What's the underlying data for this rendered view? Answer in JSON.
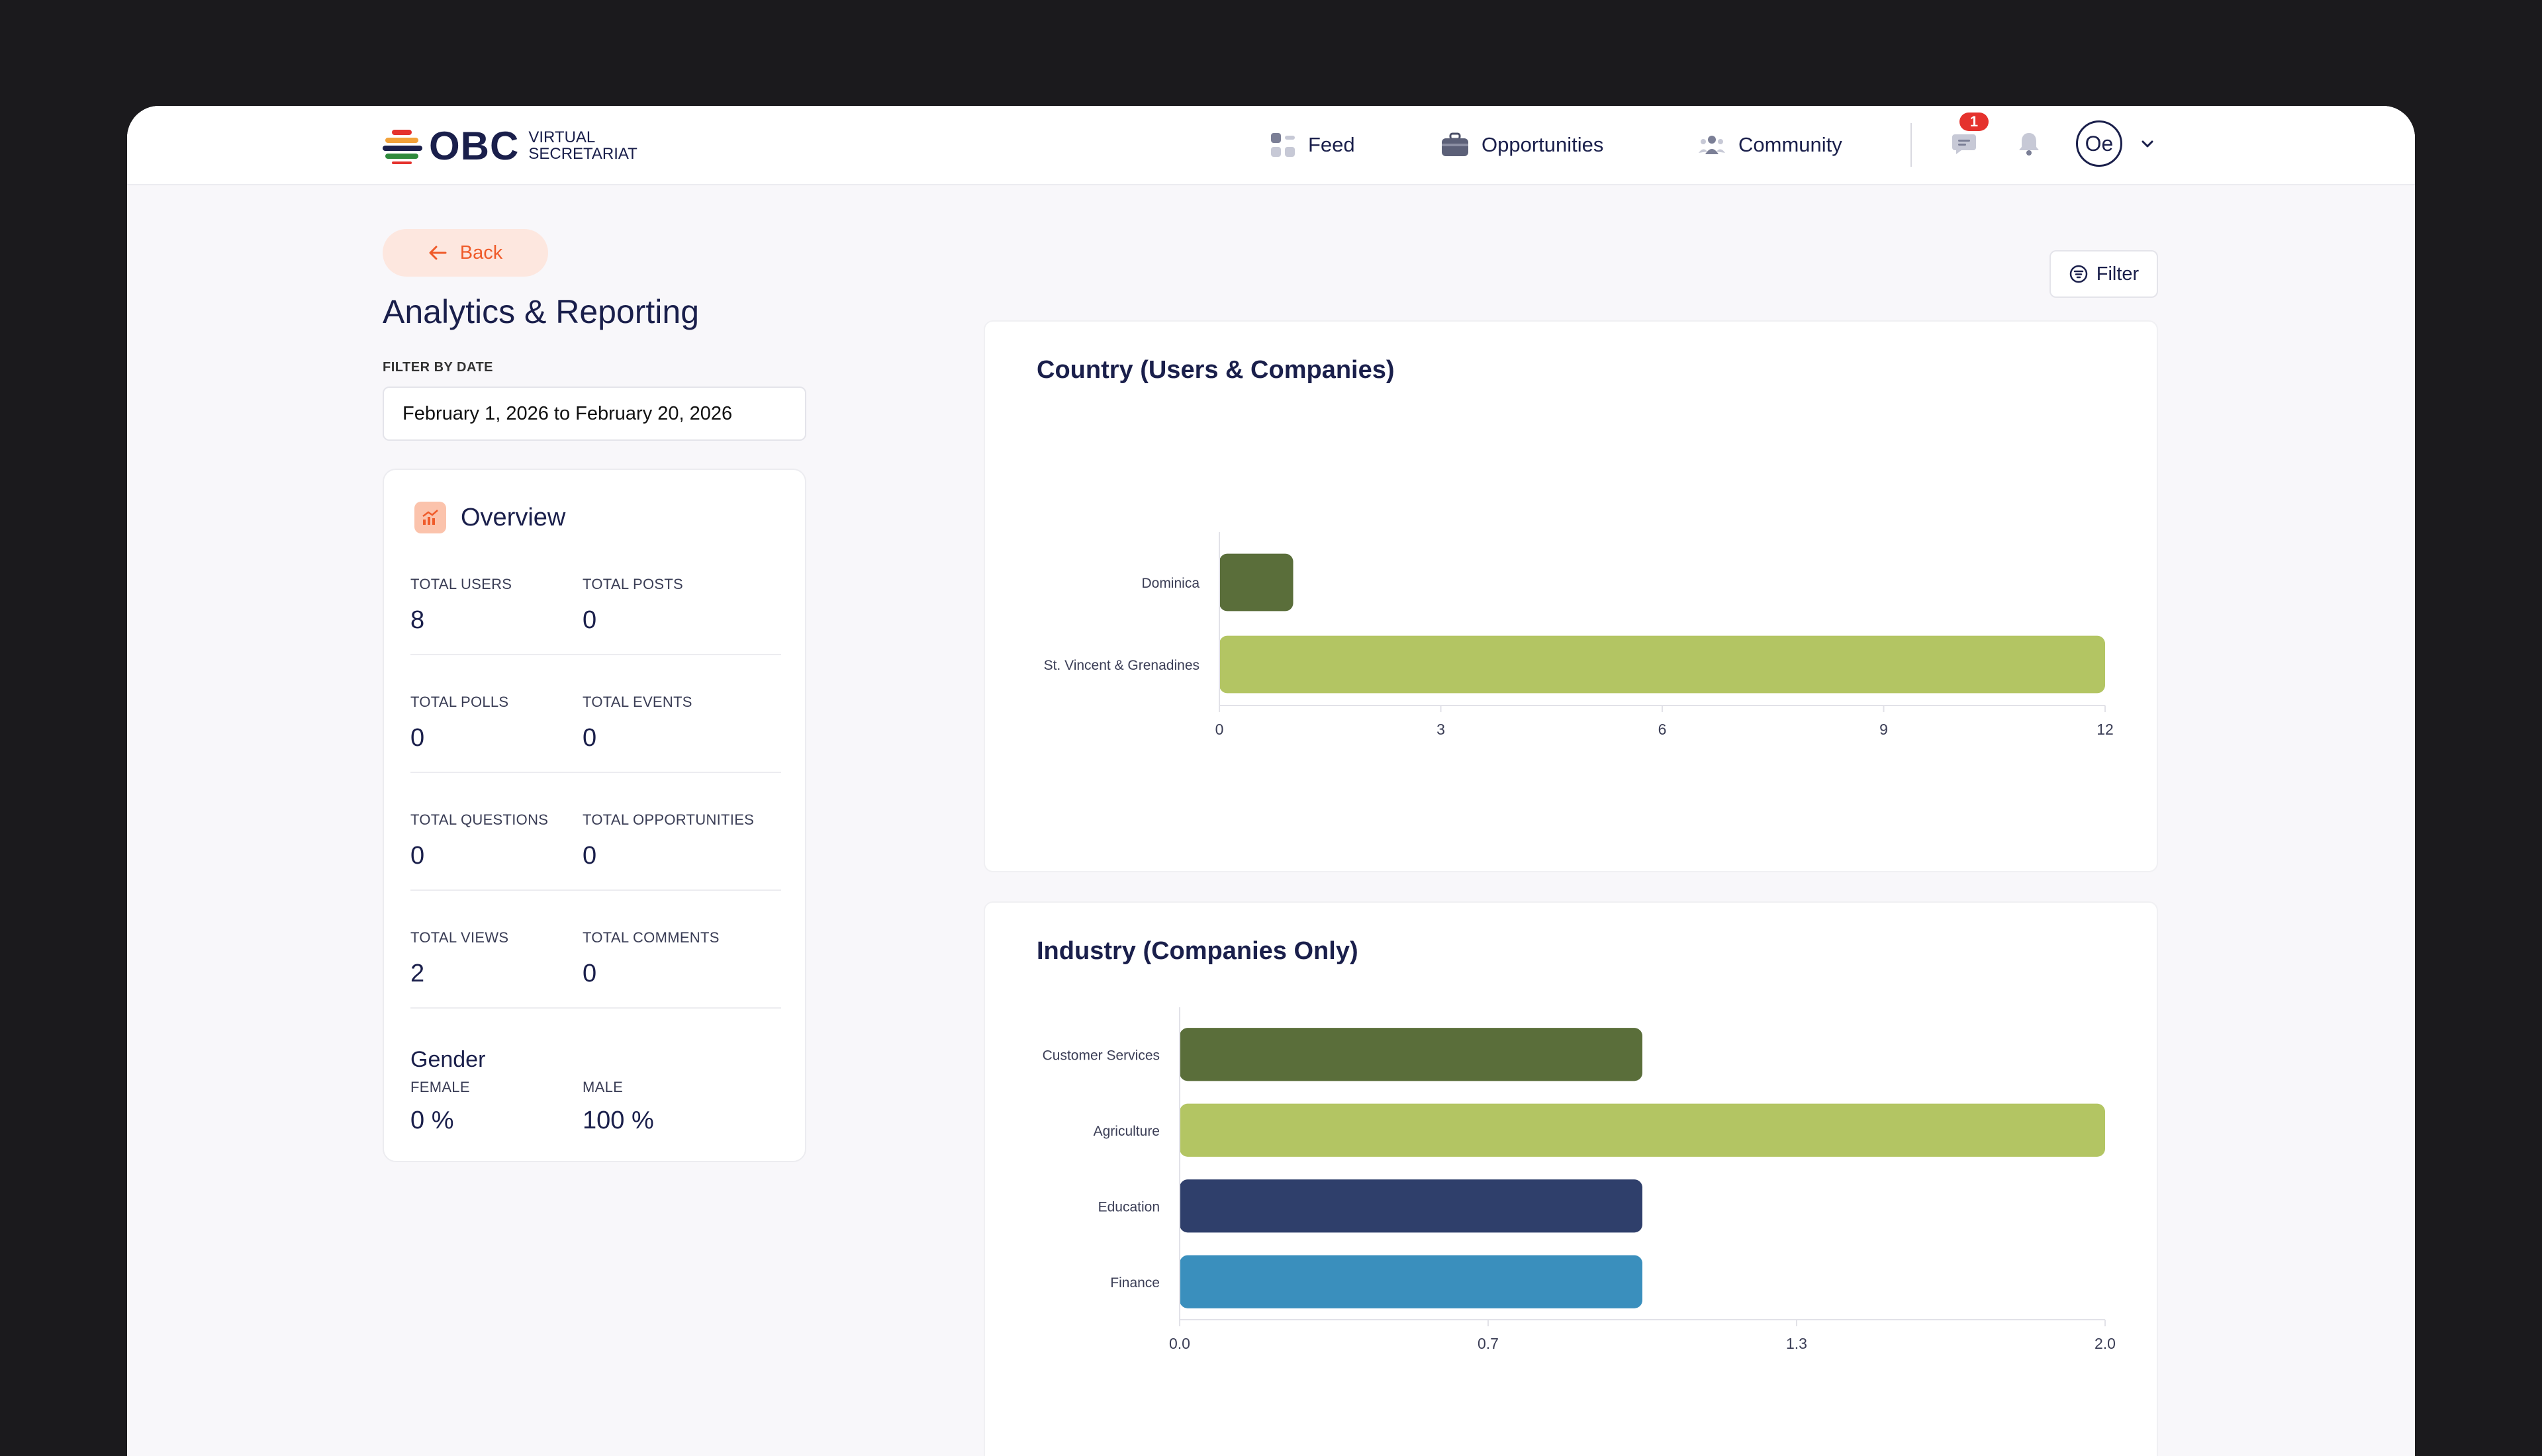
{
  "brand": {
    "name": "OBC",
    "sub_line1": "VIRTUAL",
    "sub_line2": "SECRETARIAT",
    "colors": [
      "#e5322d",
      "#f2a23a",
      "#1a1f4b",
      "#2f8a3c"
    ]
  },
  "nav": {
    "feed": {
      "label": "Feed",
      "icon": "grid-icon"
    },
    "opportunities": {
      "label": "Opportunities",
      "icon": "briefcase-icon"
    },
    "community": {
      "label": "Community",
      "icon": "users-icon"
    }
  },
  "header": {
    "messages_badge": "1",
    "messages_icon": "chat-icon",
    "notifications_icon": "bell-icon",
    "avatar_initials": "Oe"
  },
  "back_label": "Back",
  "page_title": "Analytics & Reporting",
  "filter_by_date_label": "FILTER BY DATE",
  "date_range": "February 1, 2026 to February 20, 2026",
  "filter_button_label": "Filter",
  "overview": {
    "title": "Overview",
    "stats": [
      {
        "label": "TOTAL USERS",
        "value": "8"
      },
      {
        "label": "TOTAL POSTS",
        "value": "0"
      },
      {
        "label": "TOTAL POLLS",
        "value": "0"
      },
      {
        "label": "TOTAL EVENTS",
        "value": "0"
      },
      {
        "label": "TOTAL QUESTIONS",
        "value": "0"
      },
      {
        "label": "TOTAL OPPORTUNITIES",
        "value": "0"
      },
      {
        "label": "TOTAL VIEWS",
        "value": "2"
      },
      {
        "label": "TOTAL COMMENTS",
        "value": "0"
      }
    ],
    "gender": {
      "title": "Gender",
      "female_label": "FEMALE",
      "female_value": "0 %",
      "male_label": "MALE",
      "male_value": "100 %"
    }
  },
  "chart_data": [
    {
      "type": "bar",
      "orientation": "horizontal",
      "title": "Country (Users & Companies)",
      "categories": [
        "Dominica",
        "St. Vincent & Grenadines"
      ],
      "values": [
        1,
        12
      ],
      "colors": [
        "#5a6e3a",
        "#b3c563"
      ],
      "xlim": [
        0,
        12
      ],
      "xticks": [
        "0",
        "3",
        "6",
        "9",
        "12"
      ],
      "grid": false
    },
    {
      "type": "bar",
      "orientation": "horizontal",
      "title": "Industry (Companies Only)",
      "categories": [
        "Customer Services",
        "Agriculture",
        "Education",
        "Finance"
      ],
      "values": [
        1,
        2,
        1,
        1
      ],
      "colors": [
        "#5a6e3a",
        "#b3c563",
        "#2f3f6b",
        "#3a8fbd"
      ],
      "xlim": [
        0,
        2
      ],
      "xticks": [
        "0.0",
        "0.7",
        "1.3",
        "2.0"
      ],
      "grid": false
    }
  ]
}
